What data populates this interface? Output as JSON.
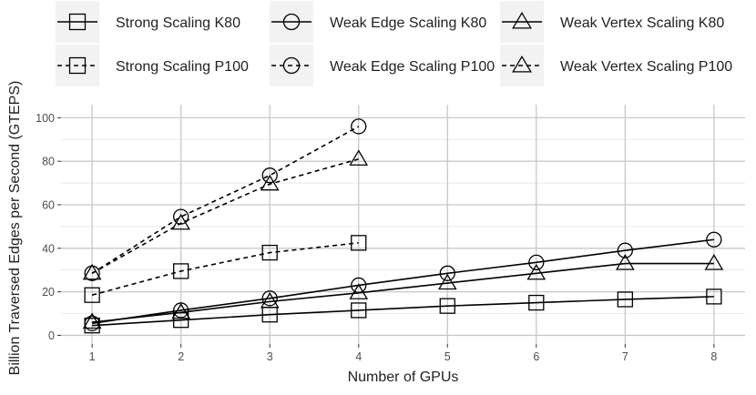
{
  "chart_data": {
    "type": "line",
    "title": "",
    "xlabel": "Number of GPUs",
    "ylabel": "Billion Traversed Edges per Second (GTEPS)",
    "xlim": [
      0.65,
      8.35
    ],
    "ylim": [
      -4,
      106
    ],
    "x_ticks": [
      1,
      2,
      3,
      4,
      5,
      6,
      7,
      8
    ],
    "y_ticks": [
      0,
      20,
      40,
      60,
      80,
      100
    ],
    "grid": true,
    "legend_position": "top",
    "series": [
      {
        "name": "Strong Scaling K80",
        "marker": "square",
        "line": "solid",
        "x": [
          1,
          2,
          3,
          4,
          5,
          6,
          7,
          8
        ],
        "y": [
          4.5,
          7,
          9.5,
          11.5,
          13.5,
          15,
          16.5,
          17.8
        ]
      },
      {
        "name": "Weak Edge Scaling K80",
        "marker": "circle",
        "line": "solid",
        "x": [
          1,
          2,
          3,
          4,
          5,
          6,
          7,
          8
        ],
        "y": [
          5.5,
          11.5,
          17,
          23,
          28.5,
          33.5,
          39,
          44
        ]
      },
      {
        "name": "Weak Vertex Scaling K80",
        "marker": "triangle",
        "line": "solid",
        "x": [
          1,
          2,
          3,
          4,
          5,
          6,
          7,
          8
        ],
        "y": [
          6,
          10.5,
          15.5,
          19.5,
          24,
          28.5,
          33,
          33
        ]
      },
      {
        "name": "Strong Scaling P100",
        "marker": "square",
        "line": "dashed",
        "x": [
          1,
          2,
          3,
          4
        ],
        "y": [
          18.5,
          29.5,
          38,
          42.5
        ]
      },
      {
        "name": "Weak Edge Scaling P100",
        "marker": "circle",
        "line": "dashed",
        "x": [
          1,
          2,
          3,
          4
        ],
        "y": [
          28.5,
          54.5,
          73.5,
          96
        ]
      },
      {
        "name": "Weak Vertex Scaling P100",
        "marker": "triangle",
        "line": "dashed",
        "x": [
          1,
          2,
          3,
          4
        ],
        "y": [
          28.5,
          51.5,
          69.5,
          81
        ]
      }
    ],
    "colors": {
      "line": "#000000",
      "grid": "#c8c8c8",
      "legend_key_bg": "#f2f2f2",
      "tick_text": "#4d4d4d"
    }
  }
}
